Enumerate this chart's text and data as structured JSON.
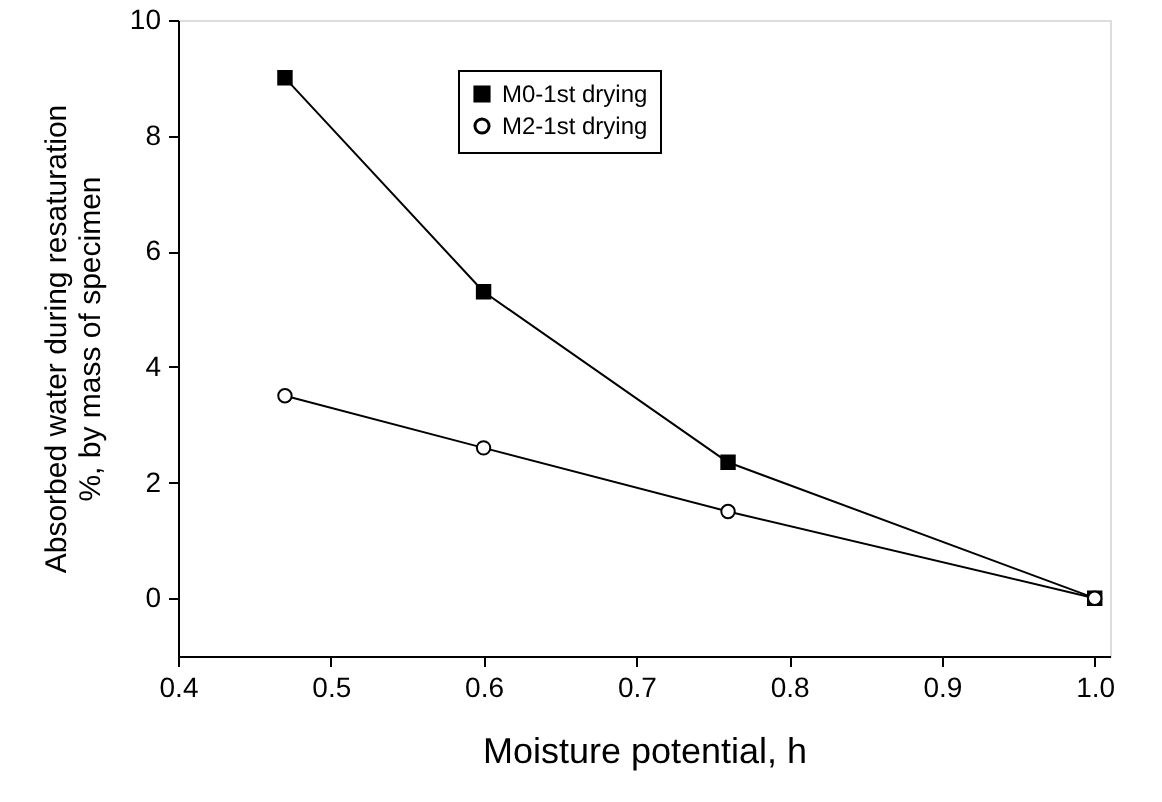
{
  "chart_data": {
    "type": "line",
    "xlabel": "Moisture potential, h",
    "ylabel": "Absorbed water during resaturation\n%, by mass of specimen",
    "xlim": [
      0.4,
      1.01
    ],
    "xticks": [
      0.4,
      0.5,
      0.6,
      0.7,
      0.8,
      0.9,
      {
        "value": 1,
        "label": "1.0"
      }
    ],
    "ylim": [
      -1,
      10
    ],
    "yticks": [
      0,
      2,
      4,
      6,
      8,
      10
    ],
    "grid": false,
    "legend": "top left",
    "series": [
      {
        "name": "M0-1st drying",
        "color": "#000000",
        "marker": "square",
        "x": [
          0.47,
          0.6,
          0.76,
          1.0
        ],
        "values": [
          9.0,
          5.3,
          2.35,
          0
        ]
      },
      {
        "name": "M2-1st drying",
        "color": "#000000",
        "marker": "circle",
        "x": [
          0.47,
          0.6,
          0.76,
          1.0
        ],
        "values": [
          3.5,
          2.6,
          1.5,
          0
        ]
      }
    ]
  }
}
